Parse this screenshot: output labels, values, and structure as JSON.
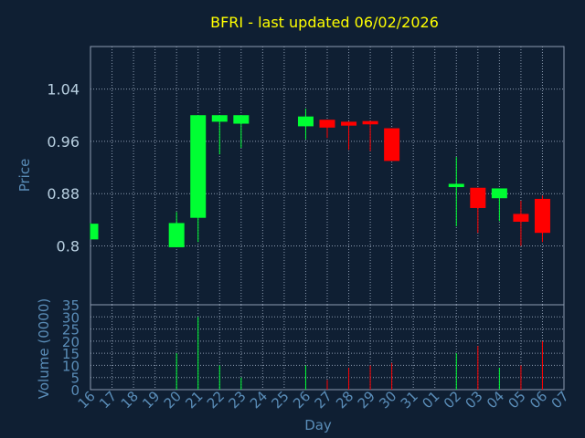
{
  "chart_data": {
    "type": "candlestick",
    "title": "BFRI - last updated 06/02/2026",
    "xlabel": "Day",
    "price_ylabel": "Price",
    "volume_ylabel": "Volume (0000)",
    "x_ticks": [
      "16",
      "17",
      "18",
      "19",
      "20",
      "21",
      "22",
      "23",
      "24",
      "25",
      "26",
      "27",
      "28",
      "29",
      "30",
      "31",
      "01",
      "02",
      "03",
      "04",
      "05",
      "06",
      "07"
    ],
    "price_ticks": [
      "1.04",
      "0.96",
      "0.88",
      "0.8"
    ],
    "volume_ticks": [
      "35",
      "30",
      "25",
      "20",
      "15",
      "10",
      "5",
      "0"
    ],
    "price_ylim": [
      0.71,
      1.105
    ],
    "volume_ylim": [
      0,
      35
    ],
    "grid": true,
    "candles": [
      {
        "day": "16",
        "open": 0.81,
        "high": 0.835,
        "low": 0.81,
        "close": 0.834,
        "volume": 0
      },
      {
        "day": "20",
        "open": 0.798,
        "high": 0.852,
        "low": 0.798,
        "close": 0.835,
        "volume": 15
      },
      {
        "day": "21",
        "open": 0.843,
        "high": 1.0,
        "low": 0.806,
        "close": 1.0,
        "volume": 30
      },
      {
        "day": "22",
        "open": 0.99,
        "high": 1.0,
        "low": 0.94,
        "close": 1.0,
        "volume": 10
      },
      {
        "day": "23",
        "open": 0.987,
        "high": 1.0,
        "low": 0.95,
        "close": 1.0,
        "volume": 5
      },
      {
        "day": "26",
        "open": 0.983,
        "high": 1.01,
        "low": 0.963,
        "close": 0.998,
        "volume": 10
      },
      {
        "day": "27",
        "open": 0.993,
        "high": 0.993,
        "low": 0.965,
        "close": 0.981,
        "volume": 4
      },
      {
        "day": "28",
        "open": 0.99,
        "high": 0.99,
        "low": 0.947,
        "close": 0.984,
        "volume": 9
      },
      {
        "day": "29",
        "open": 0.991,
        "high": 0.991,
        "low": 0.945,
        "close": 0.986,
        "volume": 10
      },
      {
        "day": "30",
        "open": 0.98,
        "high": 0.98,
        "low": 0.93,
        "close": 0.93,
        "volume": 11
      },
      {
        "day": "02",
        "open": 0.89,
        "high": 0.936,
        "low": 0.83,
        "close": 0.895,
        "volume": 15
      },
      {
        "day": "03",
        "open": 0.889,
        "high": 0.889,
        "low": 0.82,
        "close": 0.858,
        "volume": 18
      },
      {
        "day": "04",
        "open": 0.873,
        "high": 0.888,
        "low": 0.838,
        "close": 0.888,
        "volume": 9
      },
      {
        "day": "05",
        "open": 0.849,
        "high": 0.869,
        "low": 0.8,
        "close": 0.837,
        "volume": 10
      },
      {
        "day": "06",
        "open": 0.872,
        "high": 0.877,
        "low": 0.806,
        "close": 0.82,
        "volume": 20
      }
    ],
    "colors": {
      "up": "#00ff33",
      "down": "#ff0000",
      "title": "#ffff00",
      "axis_text": "#5a8db8",
      "tick_text": "#b8cfe0",
      "grid": "#8c9bb0",
      "background": "#0f1f33"
    }
  }
}
